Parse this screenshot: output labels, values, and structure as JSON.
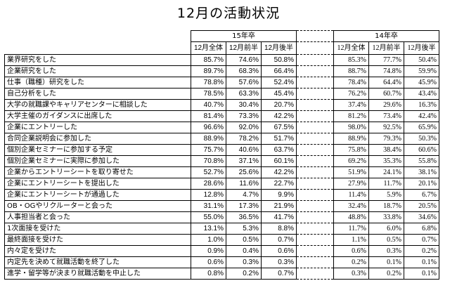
{
  "title": "12月の活動状況",
  "groups": {
    "y15": "15年卒",
    "y14": "14年卒"
  },
  "subheaders": [
    "12月全体",
    "12月前半",
    "12月後半"
  ],
  "rows": [
    {
      "label": "業界研究をした",
      "y15": [
        "85.7%",
        "74.6%",
        "50.8%"
      ],
      "y14": [
        "85.3%",
        "77.7%",
        "50.4%"
      ]
    },
    {
      "label": "企業研究をした",
      "y15": [
        "89.7%",
        "68.3%",
        "66.4%"
      ],
      "y14": [
        "88.7%",
        "74.8%",
        "59.9%"
      ]
    },
    {
      "label": "仕事（職種）研究をした",
      "y15": [
        "78.8%",
        "57.6%",
        "52.4%"
      ],
      "y14": [
        "78.4%",
        "64.4%",
        "45.9%"
      ]
    },
    {
      "label": "自己分析をした",
      "y15": [
        "78.5%",
        "63.3%",
        "45.4%"
      ],
      "y14": [
        "76.2%",
        "60.7%",
        "43.4%"
      ]
    },
    {
      "label": "大学の就職課やキャリアセンターに相談した",
      "y15": [
        "40.7%",
        "30.4%",
        "20.7%"
      ],
      "y14": [
        "37.4%",
        "29.6%",
        "16.3%"
      ]
    },
    {
      "label": "大学主催のガイダンスに出席した",
      "y15": [
        "81.4%",
        "73.3%",
        "42.2%"
      ],
      "y14": [
        "81.2%",
        "73.4%",
        "42.4%"
      ]
    },
    {
      "label": "企業にエントリーした",
      "y15": [
        "96.6%",
        "92.0%",
        "67.5%"
      ],
      "y14": [
        "98.0%",
        "92.5%",
        "65.9%"
      ]
    },
    {
      "label": "合同企業説明会に参加した",
      "y15": [
        "88.9%",
        "78.2%",
        "51.7%"
      ],
      "y14": [
        "88.9%",
        "79.3%",
        "50.3%"
      ]
    },
    {
      "label": "個別企業セミナーに参加する予定",
      "y15": [
        "75.7%",
        "40.6%",
        "63.7%"
      ],
      "y14": [
        "75.8%",
        "38.4%",
        "60.6%"
      ]
    },
    {
      "label": "個別企業セミナーに実際に参加した",
      "y15": [
        "70.8%",
        "37.1%",
        "60.1%"
      ],
      "y14": [
        "69.2%",
        "35.3%",
        "55.8%"
      ]
    },
    {
      "label": "企業からエントリーシートを取り寄せた",
      "y15": [
        "52.7%",
        "25.6%",
        "42.2%"
      ],
      "y14": [
        "51.9%",
        "24.1%",
        "38.1%"
      ]
    },
    {
      "label": "企業にエントリーシートを提出した",
      "y15": [
        "28.6%",
        "11.6%",
        "22.7%"
      ],
      "y14": [
        "27.9%",
        "11.7%",
        "20.1%"
      ]
    },
    {
      "label": "企業にエントリーシートが通過した",
      "y15": [
        "12.8%",
        "4.7%",
        "9.9%"
      ],
      "y14": [
        "11.4%",
        "5.9%",
        "6.7%"
      ]
    },
    {
      "label": "OB・OGやリクルーターと会った",
      "y15": [
        "31.1%",
        "17.3%",
        "21.9%"
      ],
      "y14": [
        "32.4%",
        "18.7%",
        "20.5%"
      ]
    },
    {
      "label": "人事担当者と会った",
      "y15": [
        "55.0%",
        "36.5%",
        "41.7%"
      ],
      "y14": [
        "48.8%",
        "33.8%",
        "34.6%"
      ]
    },
    {
      "label": "1次面接を受けた",
      "y15": [
        "13.1%",
        "5.3%",
        "8.8%"
      ],
      "y14": [
        "11.7%",
        "6.0%",
        "6.8%"
      ]
    },
    {
      "label": "最終面接を受けた",
      "y15": [
        "1.0%",
        "0.5%",
        "0.7%"
      ],
      "y14": [
        "1.1%",
        "0.5%",
        "0.7%"
      ]
    },
    {
      "label": "内々定を受けた",
      "y15": [
        "0.9%",
        "0.4%",
        "0.6%"
      ],
      "y14": [
        "0.6%",
        "0.3%",
        "0.2%"
      ]
    },
    {
      "label": "内定先を決めて就職活動を終了した",
      "y15": [
        "0.6%",
        "0.3%",
        "0.3%"
      ],
      "y14": [
        "0.2%",
        "0.1%",
        "0.1%"
      ]
    },
    {
      "label": "進学・留学等が決まり就職活動を中止した",
      "y15": [
        "0.8%",
        "0.2%",
        "0.7%"
      ],
      "y14": [
        "0.3%",
        "0.2%",
        "0.1%"
      ]
    }
  ]
}
